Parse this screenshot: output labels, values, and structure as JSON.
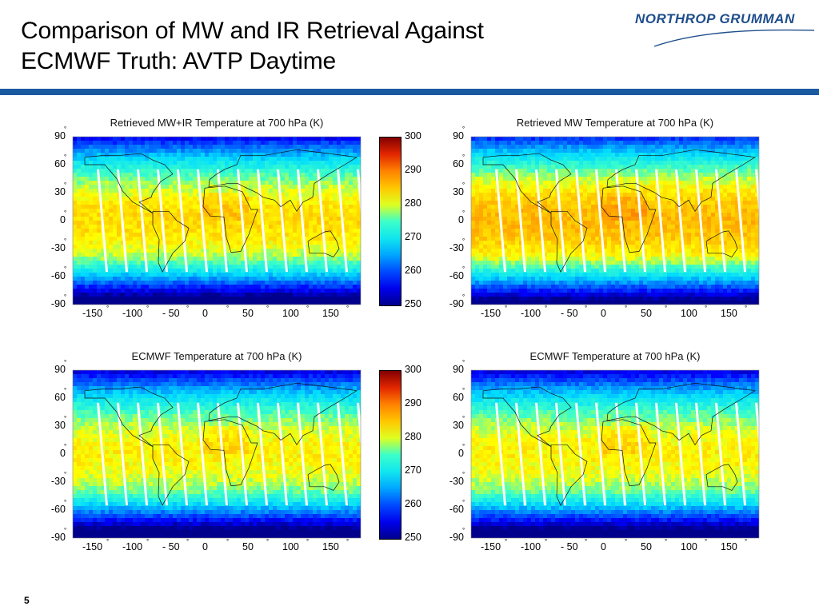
{
  "slide": {
    "title_line1": "Comparison of MW and IR Retrieval Against",
    "title_line2": "ECMWF Truth: AVTP Daytime",
    "page_number": "5",
    "logo_text": "NORTHROP GRUMMAN",
    "colors": {
      "rule": "#1a5aa0",
      "logo": "#1f4e8c"
    }
  },
  "chart_data": [
    {
      "type": "heatmap",
      "title": "Retrieved MW+IR Temperature at 700 hPa (K)",
      "x_ticks": [
        "-150",
        "-100",
        "- 50",
        "0",
        "50",
        "100",
        "150"
      ],
      "y_ticks": [
        "90",
        "60",
        "30",
        "0",
        "-30",
        "-60",
        "-90"
      ],
      "xlim": [
        -180,
        180
      ],
      "ylim": [
        -90,
        90
      ],
      "colorbar": {
        "min": 250,
        "max": 300,
        "ticks": [
          "300",
          "290",
          "280",
          "270",
          "260",
          "250"
        ]
      }
    },
    {
      "type": "heatmap",
      "title": "Retrieved MW Temperature at 700 hPa (K)",
      "x_ticks": [
        "-150",
        "-100",
        "- 50",
        "0",
        "50",
        "100",
        "150"
      ],
      "y_ticks": [
        "90",
        "60",
        "30",
        "0",
        "-30",
        "-60",
        "-90"
      ],
      "xlim": [
        -180,
        180
      ],
      "ylim": [
        -90,
        90
      ]
    },
    {
      "type": "heatmap",
      "title": "ECMWF Temperature at 700 hPa (K)",
      "x_ticks": [
        "-150",
        "-100",
        "- 50",
        "0",
        "50",
        "100",
        "150"
      ],
      "y_ticks": [
        "90",
        "60",
        "30",
        "0",
        "-30",
        "-60",
        "-90"
      ],
      "xlim": [
        -180,
        180
      ],
      "ylim": [
        -90,
        90
      ],
      "colorbar": {
        "min": 250,
        "max": 300,
        "ticks": [
          "300",
          "290",
          "280",
          "270",
          "260",
          "250"
        ]
      }
    },
    {
      "type": "heatmap",
      "title": "ECMWF Temperature at 700 hPa (K)",
      "x_ticks": [
        "-150",
        "-100",
        "- 50",
        "0",
        "50",
        "100",
        "150"
      ],
      "y_ticks": [
        "90",
        "60",
        "30",
        "0",
        "-30",
        "-60",
        "-90"
      ],
      "xlim": [
        -180,
        180
      ],
      "ylim": [
        -90,
        90
      ]
    }
  ]
}
